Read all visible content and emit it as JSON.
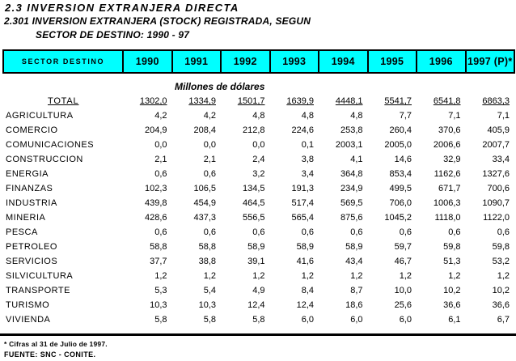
{
  "page": {
    "title": "2.3 INVERSION EXTRANJERA DIRECTA",
    "subtitle_line1": "2.301 INVERSION EXTRANJERA (STOCK) REGISTRADA, SEGUN",
    "subtitle_line2": "SECTOR DE DESTINO: 1990 - 97",
    "units_label": "Millones de dólares",
    "footnote": "* Cifras al 31 de Julio de 1997.",
    "source": "FUENTE: SNC - CONITE."
  },
  "colors": {
    "header_bg": "#00FFFF",
    "border": "#000000",
    "text": "#000000"
  },
  "table": {
    "header": [
      "SECTOR DESTINO",
      "1990",
      "1991",
      "1992",
      "1993",
      "1994",
      "1995",
      "1996",
      "1997 (P)*"
    ],
    "total_row": {
      "label": "TOTAL",
      "values": [
        "1302,0",
        "1334,9",
        "1501,7",
        "1639,9",
        "4448,1",
        "5541,7",
        "6541,8",
        "6863,3"
      ]
    },
    "rows": [
      {
        "label": "AGRICULTURA",
        "values": [
          "4,2",
          "4,2",
          "4,8",
          "4,8",
          "4,8",
          "7,7",
          "7,1",
          "7,1"
        ]
      },
      {
        "label": "COMERCIO",
        "values": [
          "204,9",
          "208,4",
          "212,8",
          "224,6",
          "253,8",
          "260,4",
          "370,6",
          "405,9"
        ]
      },
      {
        "label": "COMUNICACIONES",
        "values": [
          "0,0",
          "0,0",
          "0,0",
          "0,1",
          "2003,1",
          "2005,0",
          "2006,6",
          "2007,7"
        ]
      },
      {
        "label": "CONSTRUCCION",
        "values": [
          "2,1",
          "2,1",
          "2,4",
          "3,8",
          "4,1",
          "14,6",
          "32,9",
          "33,4"
        ]
      },
      {
        "label": "ENERGIA",
        "values": [
          "0,6",
          "0,6",
          "3,2",
          "3,4",
          "364,8",
          "853,4",
          "1162,6",
          "1327,6"
        ]
      },
      {
        "label": "FINANZAS",
        "values": [
          "102,3",
          "106,5",
          "134,5",
          "191,3",
          "234,9",
          "499,5",
          "671,7",
          "700,6"
        ]
      },
      {
        "label": "INDUSTRIA",
        "values": [
          "439,8",
          "454,9",
          "464,5",
          "517,4",
          "569,5",
          "706,0",
          "1006,3",
          "1090,7"
        ]
      },
      {
        "label": "MINERIA",
        "values": [
          "428,6",
          "437,3",
          "556,5",
          "565,4",
          "875,6",
          "1045,2",
          "1118,0",
          "1122,0"
        ]
      },
      {
        "label": "PESCA",
        "values": [
          "0,6",
          "0,6",
          "0,6",
          "0,6",
          "0,6",
          "0,6",
          "0,6",
          "0,6"
        ]
      },
      {
        "label": "PETROLEO",
        "values": [
          "58,8",
          "58,8",
          "58,9",
          "58,9",
          "58,9",
          "59,7",
          "59,8",
          "59,8"
        ]
      },
      {
        "label": "SERVICIOS",
        "values": [
          "37,7",
          "38,8",
          "39,1",
          "41,6",
          "43,4",
          "46,7",
          "51,3",
          "53,2"
        ]
      },
      {
        "label": "SILVICULTURA",
        "values": [
          "1,2",
          "1,2",
          "1,2",
          "1,2",
          "1,2",
          "1,2",
          "1,2",
          "1,2"
        ]
      },
      {
        "label": "TRANSPORTE",
        "values": [
          "5,3",
          "5,4",
          "4,9",
          "8,4",
          "8,7",
          "10,0",
          "10,2",
          "10,2"
        ]
      },
      {
        "label": "TURISMO",
        "values": [
          "10,3",
          "10,3",
          "12,4",
          "12,4",
          "18,6",
          "25,6",
          "36,6",
          "36,6"
        ]
      },
      {
        "label": "VIVIENDA",
        "values": [
          "5,8",
          "5,8",
          "5,8",
          "6,0",
          "6,0",
          "6,0",
          "6,1",
          "6,7"
        ]
      }
    ]
  }
}
